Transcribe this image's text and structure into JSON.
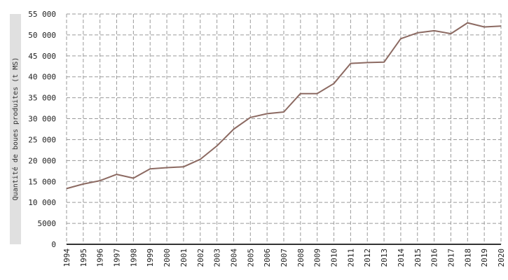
{
  "chart_data": {
    "type": "line",
    "title": "",
    "xlabel": "",
    "ylabel": "Quantité de boues produites (t MS)",
    "x": [
      1994,
      1995,
      1996,
      1997,
      1998,
      1999,
      2000,
      2001,
      2002,
      2003,
      2004,
      2005,
      2006,
      2007,
      2008,
      2009,
      2010,
      2011,
      2012,
      2013,
      2014,
      2015,
      2016,
      2017,
      2018,
      2019,
      2020
    ],
    "x_tick_labels": [
      "1994",
      "1995",
      "1996",
      "1997",
      "1998",
      "1999",
      "2000",
      "2001",
      "2002",
      "2003",
      "2004",
      "2005",
      "2006",
      "2007",
      "2008",
      "2009",
      "2010",
      "2011",
      "2012",
      "2013",
      "2014",
      "2015",
      "2016",
      "2017",
      "2018",
      "2019",
      "2020"
    ],
    "series": [
      {
        "values": [
          13300,
          14400,
          15200,
          16700,
          15800,
          18000,
          18300,
          18500,
          20300,
          23500,
          27500,
          30300,
          31200,
          31600,
          36000,
          36000,
          38400,
          43200,
          43400,
          43500,
          49100,
          50500,
          51000,
          50300,
          52900,
          51900,
          52100
        ],
        "color": "#8c6a62"
      }
    ],
    "ylim": [
      0,
      55000
    ],
    "y_ticks": [
      0,
      5000,
      10000,
      15000,
      20000,
      25000,
      30000,
      35000,
      40000,
      45000,
      50000,
      55000
    ],
    "y_tick_labels": [
      "0",
      "5000",
      "10 000",
      "15 000",
      "20 000",
      "25 000",
      "30 000",
      "35 000",
      "40 000",
      "45 000",
      "50 000",
      "55 000"
    ],
    "grid": true,
    "legend": "none",
    "colors": {
      "line": "#8c6a62",
      "grid": "#9a9a9a",
      "axis": "#333333",
      "ylabel_band": "#e0e0e0"
    }
  }
}
